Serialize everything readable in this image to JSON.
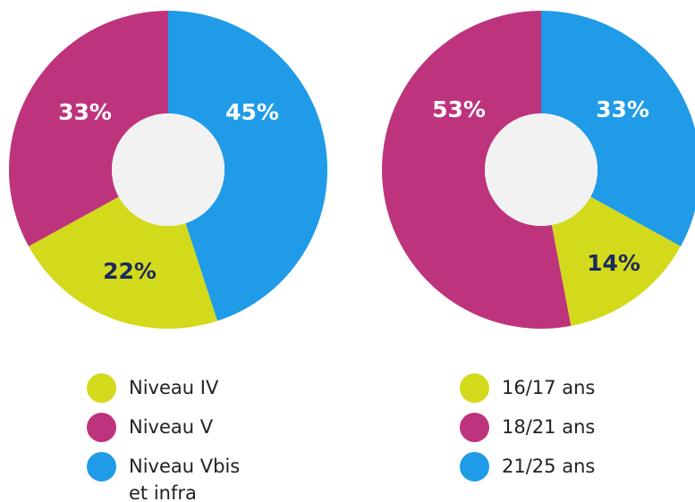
{
  "chart_data": [
    {
      "type": "donut",
      "categories": [
        "Niveau IV",
        "Niveau V",
        "Niveau Vbis et infra"
      ],
      "values": [
        22,
        33,
        45
      ],
      "value_labels": [
        "22%",
        "33%",
        "45%"
      ],
      "colors": [
        "#d3da1c",
        "#be347c",
        "#1f9be8"
      ]
    },
    {
      "type": "donut",
      "categories": [
        "16/17 ans",
        "18/21 ans",
        "21/25 ans"
      ],
      "values": [
        14,
        53,
        33
      ],
      "value_labels": [
        "14%",
        "53%",
        "33%"
      ],
      "colors": [
        "#d3da1c",
        "#be347c",
        "#1f9be8"
      ]
    }
  ]
}
